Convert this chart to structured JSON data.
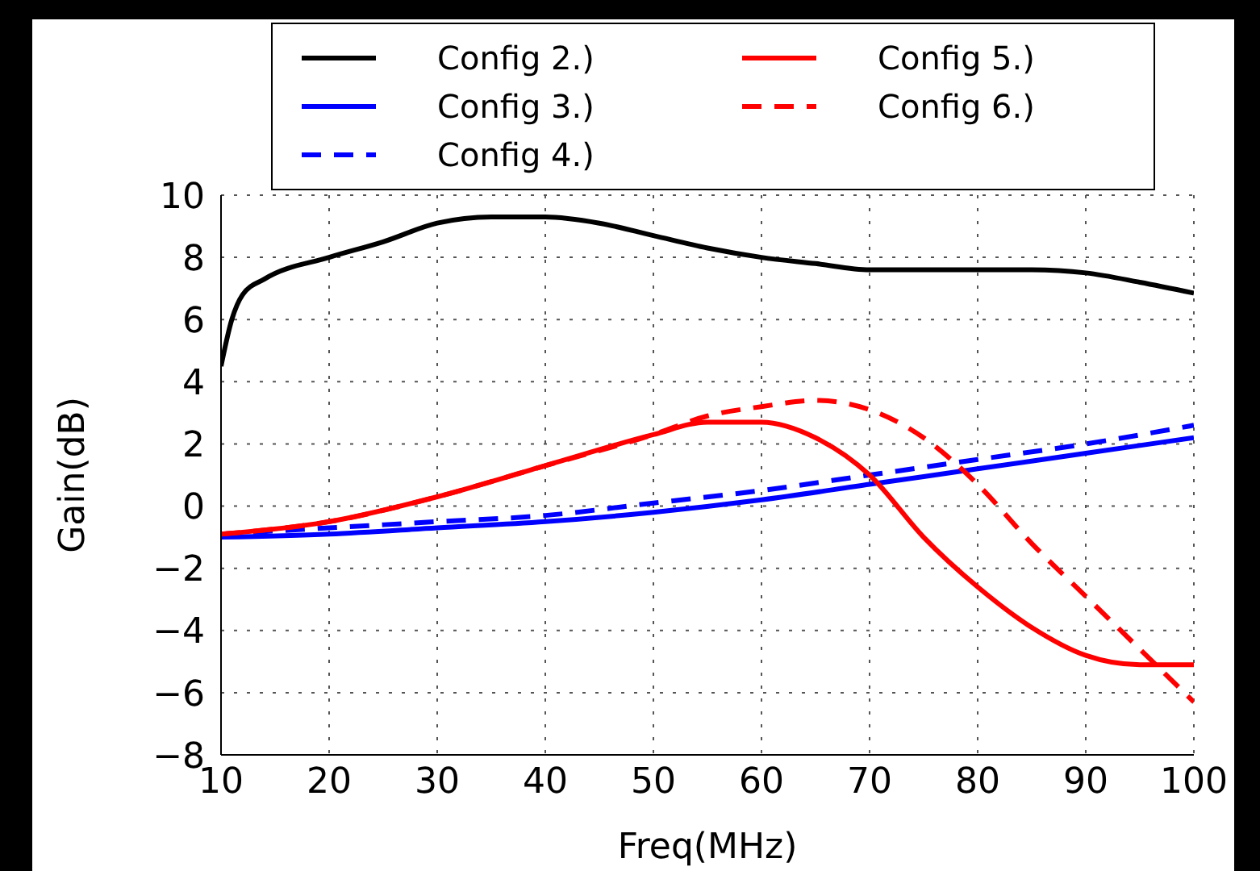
{
  "chart_data": {
    "type": "line",
    "xlabel": "Freq(MHz)",
    "ylabel": "Gain(dB)",
    "xlim": [
      10,
      100
    ],
    "xticks": [
      10,
      20,
      30,
      40,
      50,
      60,
      70,
      80,
      90,
      100
    ],
    "ylim": [
      -8,
      10
    ],
    "yticks": [
      -8,
      -6,
      -4,
      -2,
      0,
      2,
      4,
      6,
      8,
      10
    ],
    "grid": true,
    "legend": "top",
    "marker": "none",
    "series": [
      {
        "name": "Config 2.)",
        "color": "#000000",
        "line_style": "solid",
        "x": [
          10,
          11,
          12,
          14,
          20,
          25,
          30,
          35,
          40,
          45,
          50,
          55,
          60,
          65,
          70,
          75,
          80,
          85,
          90,
          95,
          100
        ],
        "values": [
          4.5,
          6,
          6.8,
          7.3,
          8,
          8.5,
          9.1,
          9.3,
          9.3,
          9.1,
          8.7,
          8.3,
          8,
          7.8,
          7.6,
          7.6,
          7.6,
          7.6,
          7.5,
          7.2,
          6.85
        ]
      },
      {
        "name": "Config 3.)",
        "color": "#0000ff",
        "line_style": "solid",
        "x": [
          10,
          20,
          30,
          40,
          50,
          60,
          70,
          80,
          90,
          100
        ],
        "values": [
          -1,
          -0.9,
          -0.7,
          -0.5,
          -0.2,
          0.2,
          0.7,
          1.2,
          1.7,
          2.2
        ]
      },
      {
        "name": "Config 4.)",
        "color": "#0000ff",
        "line_style": "dashed",
        "x": [
          10,
          20,
          30,
          40,
          50,
          60,
          70,
          80,
          90,
          100
        ],
        "values": [
          -0.9,
          -0.7,
          -0.5,
          -0.3,
          0.1,
          0.5,
          1,
          1.5,
          2,
          2.6
        ]
      },
      {
        "name": "Config 5.)",
        "color": "#ff0000",
        "line_style": "solid",
        "x": [
          10,
          20,
          30,
          40,
          50,
          55,
          60,
          65,
          70,
          75,
          80,
          85,
          90,
          95,
          100
        ],
        "values": [
          -0.9,
          -0.5,
          0.3,
          1.3,
          2.3,
          2.7,
          2.7,
          2.2,
          1,
          -1,
          -2.6,
          -3.9,
          -4.8,
          -5.1,
          -5.1
        ]
      },
      {
        "name": "Config 6.)",
        "color": "#ff0000",
        "line_style": "dashed",
        "x": [
          10,
          20,
          30,
          40,
          50,
          55,
          60,
          65,
          70,
          75,
          80,
          85,
          90,
          95,
          100
        ],
        "values": [
          -0.9,
          -0.5,
          0.3,
          1.3,
          2.3,
          2.9,
          3.2,
          3.4,
          3.1,
          2.2,
          0.7,
          -1.2,
          -2.9,
          -4.6,
          -6.3
        ]
      }
    ]
  }
}
